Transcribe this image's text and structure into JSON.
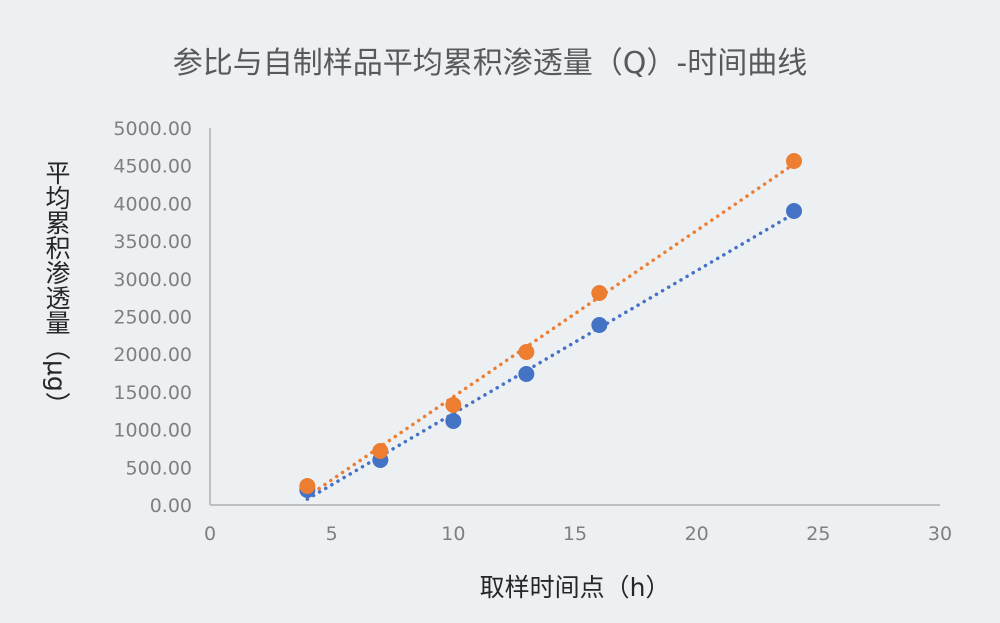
{
  "chart_data": {
    "type": "scatter",
    "title": "参比与自制样品平均累积渗透量（Q）-时间曲线",
    "xlabel": "取样时间点（h）",
    "ylabel": "平均累积渗透量（μg）",
    "xlim": [
      0,
      30
    ],
    "ylim": [
      0,
      5000
    ],
    "xticks": [
      "0",
      "5",
      "10",
      "15",
      "20",
      "25",
      "30"
    ],
    "yticks": [
      "0.00",
      "500.00",
      "1000.00",
      "1500.00",
      "2000.00",
      "2500.00",
      "3000.00",
      "3500.00",
      "4000.00",
      "4500.00",
      "5000.00"
    ],
    "grid": false,
    "legend": "none",
    "trendline": "linear, dotted",
    "x": [
      4,
      7,
      10,
      13,
      16,
      24
    ],
    "series": [
      {
        "color": "#4472c4",
        "values": [
          199,
          597,
          1114,
          1737,
          2387,
          3899
        ]
      },
      {
        "color": "#ed7d31",
        "values": [
          252,
          716,
          1326,
          2029,
          2812,
          4562
        ]
      }
    ]
  }
}
